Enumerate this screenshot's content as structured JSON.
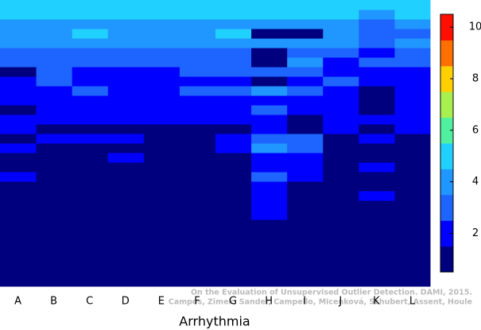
{
  "chart_data": {
    "type": "heatmap",
    "x_label": "Arrhythmia",
    "annotations": [
      "On the Evaluation of Unsupervised Outlier Detection. DAMI, 2015.",
      "Campos, Zimek, Sander, Campello, Micenková, Schubert, Assent, Houle"
    ],
    "categories": [
      "A",
      "B",
      "C",
      "D",
      "E",
      "F",
      "G",
      "H",
      "I",
      "J",
      "K",
      "L"
    ],
    "values": [
      [
        5,
        5,
        4,
        4,
        4,
        3,
        3,
        1,
        2,
        2,
        2,
        1,
        2,
        2,
        1,
        2,
        1,
        1,
        2,
        1,
        1,
        1,
        1,
        1,
        1,
        1,
        1,
        1,
        1,
        1
      ],
      [
        5,
        5,
        4,
        4,
        4,
        3,
        3,
        3,
        3,
        2,
        2,
        2,
        2,
        1,
        2,
        1,
        1,
        1,
        1,
        1,
        1,
        1,
        1,
        1,
        1,
        1,
        1,
        1,
        1,
        1
      ],
      [
        5,
        5,
        4,
        5,
        4,
        3,
        3,
        2,
        2,
        3,
        2,
        2,
        2,
        1,
        2,
        1,
        1,
        1,
        1,
        1,
        1,
        1,
        1,
        1,
        1,
        1,
        1,
        1,
        1,
        1
      ],
      [
        5,
        5,
        4,
        4,
        4,
        3,
        3,
        2,
        2,
        2,
        2,
        2,
        2,
        1,
        2,
        1,
        2,
        1,
        1,
        1,
        1,
        1,
        1,
        1,
        1,
        1,
        1,
        1,
        1,
        1
      ],
      [
        5,
        5,
        4,
        4,
        4,
        3,
        3,
        2,
        2,
        2,
        2,
        2,
        2,
        1,
        1,
        1,
        1,
        1,
        1,
        1,
        1,
        1,
        1,
        1,
        1,
        1,
        1,
        1,
        1,
        1
      ],
      [
        5,
        5,
        4,
        4,
        4,
        3,
        3,
        3,
        2,
        3,
        2,
        2,
        2,
        1,
        1,
        1,
        1,
        1,
        1,
        1,
        1,
        1,
        1,
        1,
        1,
        1,
        1,
        1,
        1,
        1
      ],
      [
        5,
        5,
        4,
        5,
        4,
        3,
        3,
        3,
        2,
        3,
        2,
        2,
        2,
        1,
        2,
        2,
        1,
        1,
        1,
        1,
        1,
        1,
        1,
        1,
        1,
        1,
        1,
        1,
        1,
        1
      ],
      [
        5,
        5,
        4,
        1,
        4,
        1,
        1,
        3,
        1,
        4,
        2,
        3,
        2,
        2,
        3,
        4,
        2,
        2,
        3,
        2,
        2,
        2,
        2,
        1,
        1,
        1,
        1,
        1,
        1,
        1
      ],
      [
        5,
        5,
        4,
        1,
        4,
        3,
        4,
        3,
        2,
        3,
        2,
        2,
        1,
        1,
        3,
        3,
        2,
        2,
        2,
        1,
        1,
        1,
        1,
        1,
        1,
        1,
        1,
        1,
        1,
        1
      ],
      [
        5,
        5,
        4,
        4,
        4,
        3,
        2,
        2,
        3,
        2,
        2,
        2,
        2,
        2,
        1,
        1,
        1,
        1,
        1,
        1,
        1,
        1,
        1,
        1,
        1,
        1,
        1,
        1,
        1,
        1
      ],
      [
        5,
        4,
        3,
        3,
        3,
        2,
        3,
        2,
        2,
        1,
        1,
        1,
        2,
        1,
        2,
        1,
        1,
        2,
        1,
        1,
        2,
        1,
        1,
        1,
        1,
        1,
        1,
        1,
        1,
        1
      ],
      [
        5,
        5,
        4,
        3,
        4,
        3,
        3,
        2,
        2,
        2,
        2,
        2,
        2,
        2,
        1,
        1,
        1,
        1,
        1,
        1,
        1,
        1,
        1,
        1,
        1,
        1,
        1,
        1,
        1,
        1
      ]
    ],
    "colors": [
      "#00007f",
      "#0000ff",
      "#1e64ff",
      "#2096ff",
      "#20d0ff",
      "#50f0a0",
      "#a8f050",
      "#ffd000",
      "#ff7000",
      "#ff1000",
      "#900000"
    ],
    "zlim": [
      0.5,
      10.5
    ],
    "zticks": [
      2,
      4,
      6,
      8,
      10
    ]
  }
}
